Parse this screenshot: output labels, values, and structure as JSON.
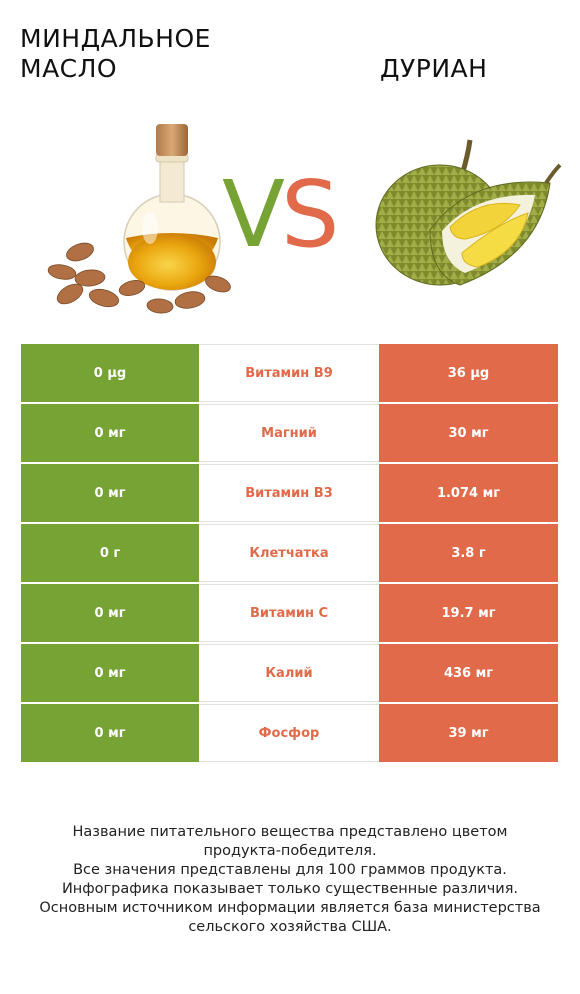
{
  "header": {
    "left_title_line1": "МИНДАЛЬНОЕ",
    "left_title_line2": "МАСЛО",
    "right_title": "ДУРИАН",
    "vs_v": "V",
    "vs_s": "S"
  },
  "colors": {
    "winner_left": "#76a334",
    "winner_right": "#e06a4a"
  },
  "images": {
    "left": "almond-oil-bottle-with-almonds",
    "right": "durian-fruit"
  },
  "rows": [
    {
      "left": "0 µg",
      "name": "Витамин B9",
      "right": "36 µg"
    },
    {
      "left": "0 мг",
      "name": "Магний",
      "right": "30 мг"
    },
    {
      "left": "0 мг",
      "name": "Витамин B3",
      "right": "1.074 мг"
    },
    {
      "left": "0 г",
      "name": "Клетчатка",
      "right": "3.8 г"
    },
    {
      "left": "0 мг",
      "name": "Витамин C",
      "right": "19.7 мг"
    },
    {
      "left": "0 мг",
      "name": "Калий",
      "right": "436 мг"
    },
    {
      "left": "0 мг",
      "name": "Фосфор",
      "right": "39 мг"
    }
  ],
  "footnote": {
    "line1": "Название питательного вещества представлено цветом",
    "line2": "продукта-победителя.",
    "line3": "Все значения представлены для 100 граммов продукта.",
    "line4": "Инфографика показывает только существенные различия.",
    "line5": "Основным источником информации является база министерства",
    "line6": "сельского хозяйства США."
  }
}
